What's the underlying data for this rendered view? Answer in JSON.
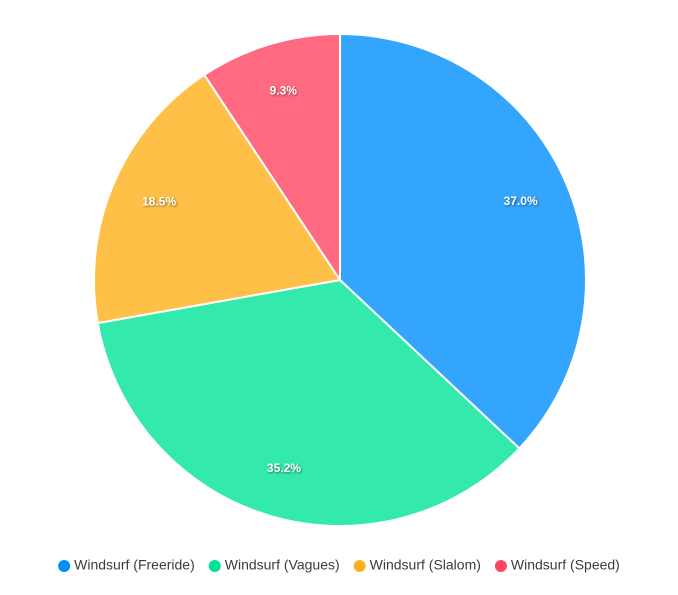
{
  "chart_data": {
    "type": "pie",
    "categories": [
      "Windsurf (Freeride)",
      "Windsurf (Vagues)",
      "Windsurf (Slalom)",
      "Windsurf (Speed)"
    ],
    "values": [
      37.0,
      35.2,
      18.5,
      9.3
    ],
    "value_labels": [
      "37.0%",
      "35.2%",
      "18.5%",
      "9.3%"
    ],
    "colors": [
      "#008FFB",
      "#00E396",
      "#FEB019",
      "#FF4560"
    ],
    "legend": "bottom"
  }
}
